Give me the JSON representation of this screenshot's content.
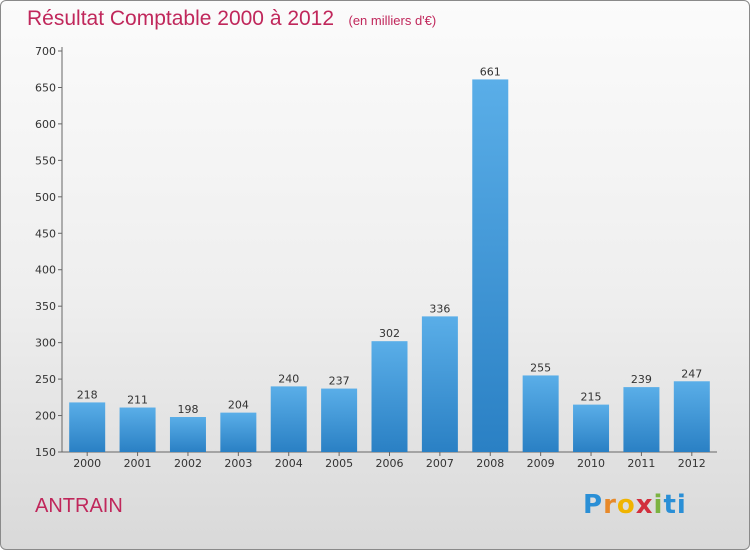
{
  "header": {
    "title": "Résultat Comptable 2000 à 2012",
    "unit": "(en milliers d'€)"
  },
  "footer": {
    "commune": "ANTRAIN",
    "logo_letters": [
      "P",
      "r",
      "o",
      "x",
      "i",
      "t",
      "i"
    ]
  },
  "colors": {
    "title": "#c0275b",
    "bar_light": "#5aaee8",
    "bar_dark": "#2a80c4",
    "axis": "#666666"
  },
  "chart_data": {
    "type": "bar",
    "title": "Résultat Comptable 2000 à 2012",
    "subtitle": "(en milliers d'€)",
    "categories": [
      "2000",
      "2001",
      "2002",
      "2003",
      "2004",
      "2005",
      "2006",
      "2007",
      "2008",
      "2009",
      "2010",
      "2011",
      "2012"
    ],
    "values": [
      218,
      211,
      198,
      204,
      240,
      237,
      302,
      336,
      661,
      255,
      215,
      239,
      247
    ],
    "ylim": [
      150,
      700
    ],
    "yticks": [
      150,
      200,
      250,
      300,
      350,
      400,
      450,
      500,
      550,
      600,
      650,
      700
    ],
    "grid": false,
    "legend": "none"
  }
}
